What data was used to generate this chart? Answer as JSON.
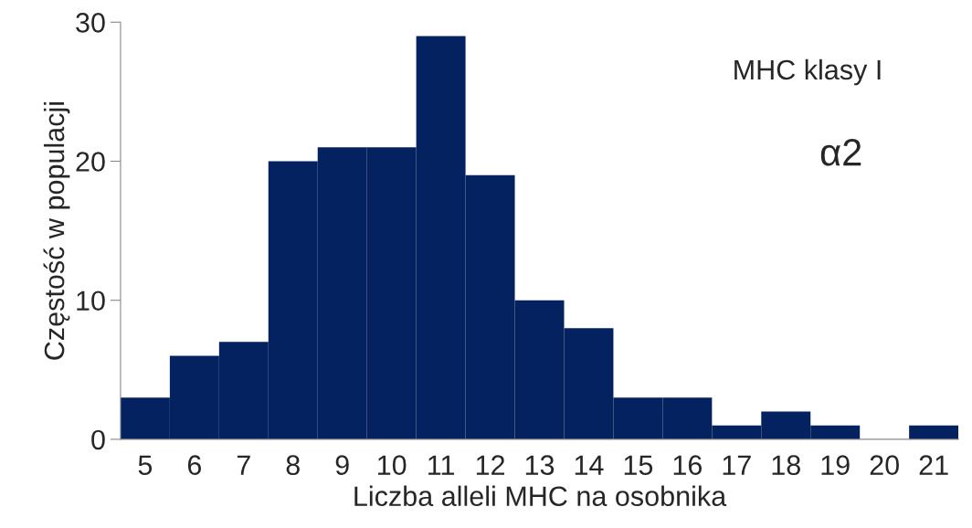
{
  "chart_data": {
    "type": "bar",
    "xlabel": "Liczba alleli MHC na osobnika",
    "ylabel": "Częstość w populacji",
    "categories": [
      "5",
      "6",
      "7",
      "8",
      "9",
      "10",
      "11",
      "12",
      "13",
      "14",
      "15",
      "16",
      "17",
      "18",
      "19",
      "20",
      "21"
    ],
    "values": [
      3,
      6,
      7,
      20,
      21,
      21,
      29,
      19,
      10,
      8,
      3,
      3,
      1,
      2,
      1,
      0,
      1
    ],
    "color": "#03225f",
    "ylim": [
      0,
      30
    ],
    "yticks": [
      0,
      10,
      20,
      30
    ],
    "grid": false,
    "annotations": [
      "MHC klasy I",
      "α2"
    ]
  }
}
